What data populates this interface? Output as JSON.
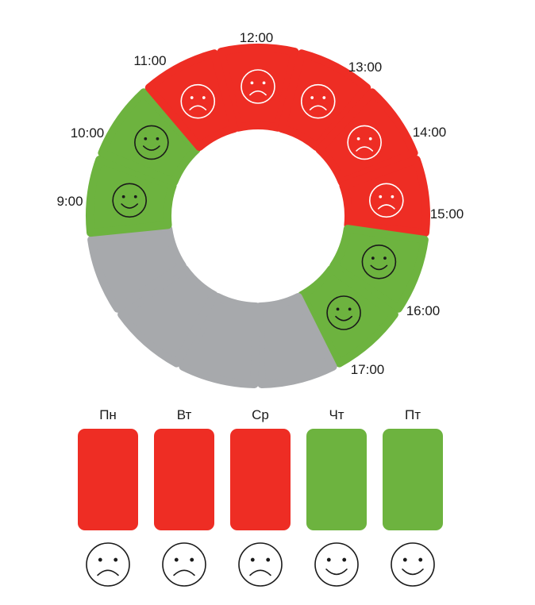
{
  "colors": {
    "good": "#6db33f",
    "bad": "#ee2d24",
    "empty": "#a7a9ac",
    "face_on_green": "#1a1a1a",
    "face_on_red": "#ffffff",
    "face_outline": "#1a1a1a"
  },
  "hours": {
    "slots": [
      {
        "status": "bad",
        "face": "sad-face-icon"
      },
      {
        "status": "bad",
        "face": "sad-face-icon"
      },
      {
        "status": "bad",
        "face": "sad-face-icon"
      },
      {
        "status": "bad",
        "face": "sad-face-icon"
      },
      {
        "status": "good",
        "face": "happy-face-icon"
      },
      {
        "status": "good",
        "face": "happy-face-icon"
      },
      {
        "status": "empty",
        "face": ""
      },
      {
        "status": "empty",
        "face": ""
      },
      {
        "status": "empty",
        "face": ""
      },
      {
        "status": "empty",
        "face": ""
      },
      {
        "status": "good",
        "face": "happy-face-icon"
      },
      {
        "status": "good",
        "face": "happy-face-icon"
      },
      {
        "status": "bad",
        "face": "sad-face-icon"
      }
    ],
    "labels": {
      "t900": "9:00",
      "t1000": "10:00",
      "t1100": "11:00",
      "t1200": "12:00",
      "t1300": "13:00",
      "t1400": "14:00",
      "t1500": "15:00",
      "t1600": "16:00",
      "t1700": "17:00"
    }
  },
  "days": [
    {
      "label": "Пн",
      "status": "bad",
      "face": "sad-face-icon"
    },
    {
      "label": "Вт",
      "status": "bad",
      "face": "sad-face-icon"
    },
    {
      "label": "Ср",
      "status": "bad",
      "face": "sad-face-icon"
    },
    {
      "label": "Чт",
      "status": "good",
      "face": "happy-face-icon"
    },
    {
      "label": "Пт",
      "status": "good",
      "face": "happy-face-icon"
    }
  ]
}
